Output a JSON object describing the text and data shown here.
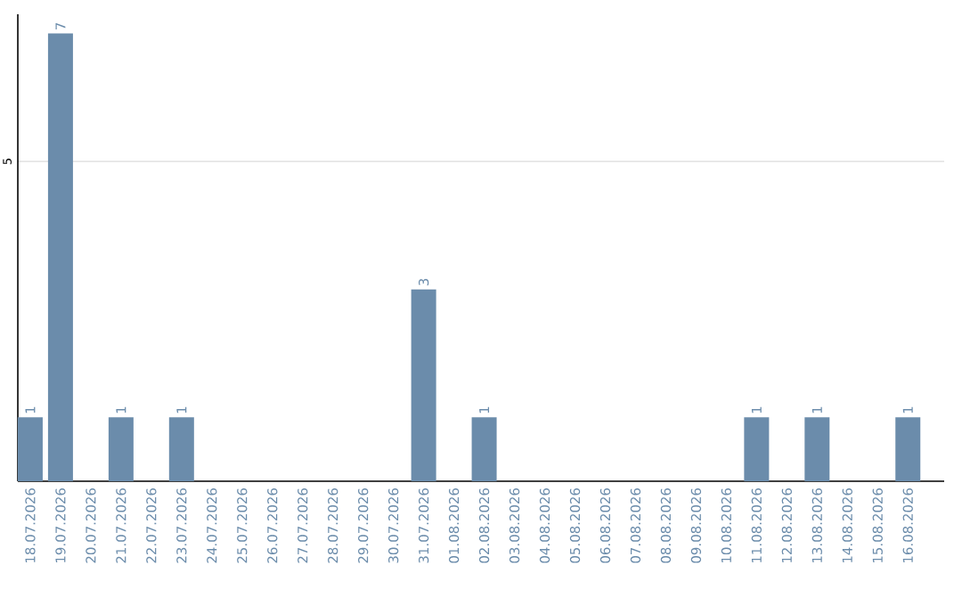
{
  "chart_data": {
    "type": "bar",
    "categories": [
      "18.07.2026",
      "19.07.2026",
      "20.07.2026",
      "21.07.2026",
      "22.07.2026",
      "23.07.2026",
      "24.07.2026",
      "25.07.2026",
      "26.07.2026",
      "27.07.2026",
      "28.07.2026",
      "29.07.2026",
      "30.07.2026",
      "31.07.2026",
      "01.08.2026",
      "02.08.2026",
      "03.08.2026",
      "04.08.2026",
      "05.08.2026",
      "06.08.2026",
      "07.08.2026",
      "08.08.2026",
      "09.08.2026",
      "10.08.2026",
      "11.08.2026",
      "12.08.2026",
      "13.08.2026",
      "14.08.2026",
      "15.08.2026",
      "16.08.2026"
    ],
    "values": [
      1,
      7,
      0,
      1,
      0,
      1,
      0,
      0,
      0,
      0,
      0,
      0,
      0,
      3,
      0,
      1,
      0,
      0,
      0,
      0,
      0,
      0,
      0,
      0,
      1,
      0,
      1,
      0,
      0,
      1
    ],
    "value_labels": [
      "1",
      "7",
      null,
      "1",
      null,
      "1",
      null,
      null,
      null,
      null,
      null,
      null,
      null,
      "3",
      null,
      "1",
      null,
      null,
      null,
      null,
      null,
      null,
      null,
      null,
      "1",
      null,
      "1",
      null,
      null,
      "1"
    ],
    "color": "#6b8cab",
    "ylim": [
      0,
      7.3
    ],
    "yticks": [
      5
    ],
    "grid": "y"
  }
}
